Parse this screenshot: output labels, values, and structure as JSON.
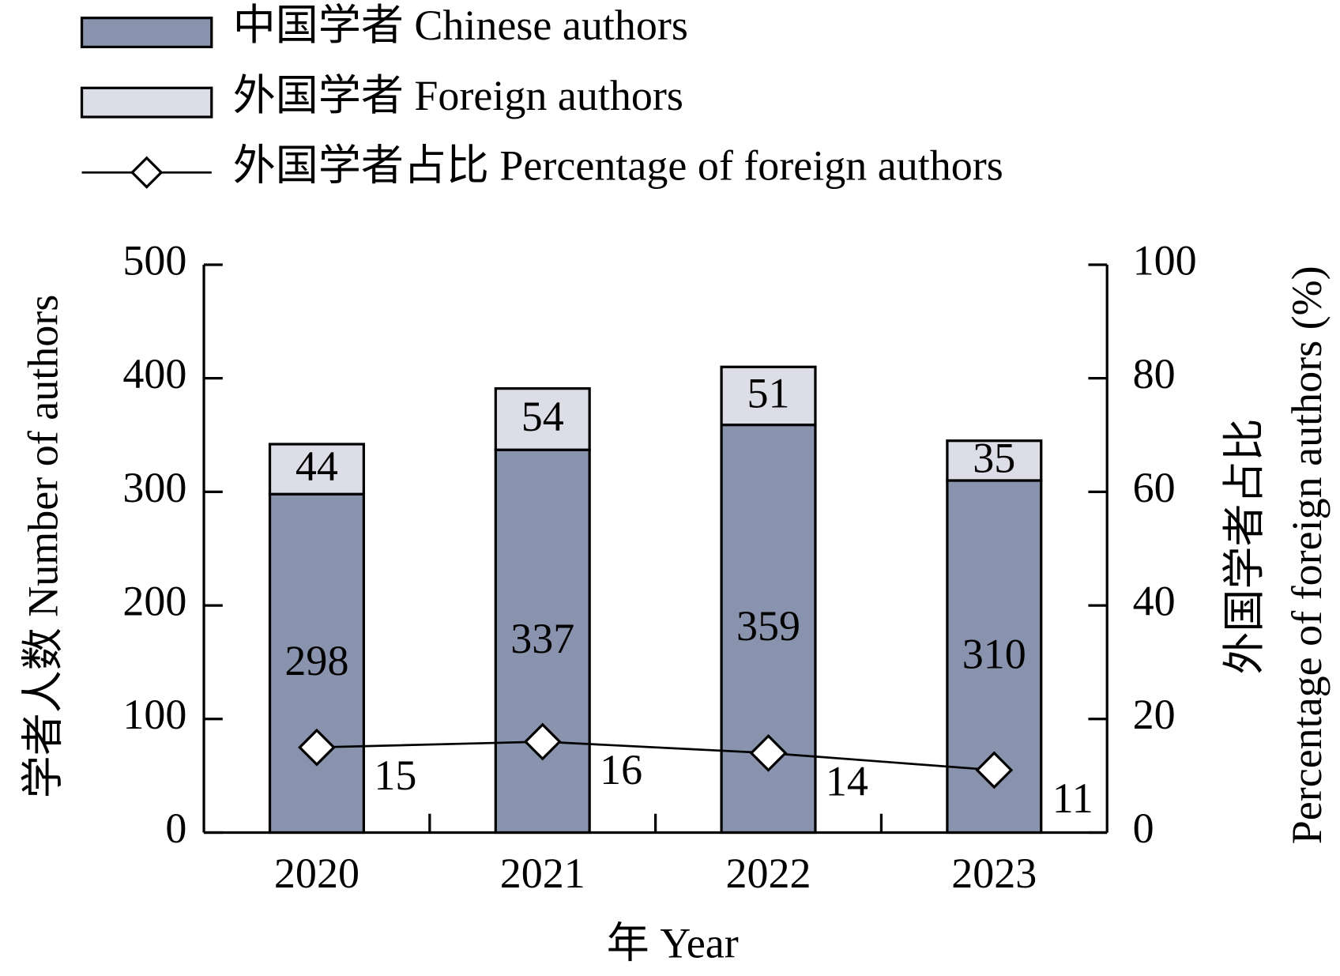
{
  "chart_data": {
    "type": "bar",
    "stacked": true,
    "y_label": "学者人数 Number of authors",
    "y2_label": [
      "外国学者占比",
      "Percentage of foreign authors (%)"
    ],
    "x_label": "年 Year",
    "categories": [
      "2020",
      "2021",
      "2022",
      "2023"
    ],
    "series": [
      {
        "name": "中国学者 Chinese authors",
        "color": "#8a93ae",
        "values": [
          298,
          337,
          359,
          310
        ]
      },
      {
        "name": "外国学者 Foreign authors",
        "color": "#dcdde6",
        "values": [
          44,
          54,
          51,
          35
        ]
      },
      {
        "name": "外国学者占比 Percentage of foreign authors",
        "type": "line",
        "axis": "y2",
        "color": "#000000",
        "values": [
          15,
          16,
          14,
          11
        ]
      }
    ],
    "ylim": [
      0,
      500
    ],
    "yticks": [
      0,
      100,
      200,
      300,
      400,
      500
    ],
    "y2lim": [
      0,
      100
    ],
    "y2ticks": [
      0,
      20,
      40,
      60,
      80,
      100
    ],
    "grid": false,
    "legend": "top-left"
  }
}
